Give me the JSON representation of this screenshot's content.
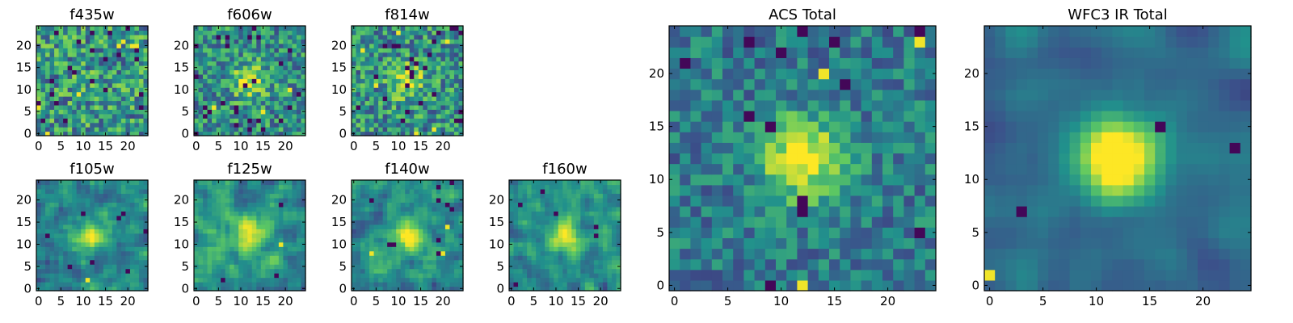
{
  "chart_data": {
    "type": "heatmap",
    "colormap": [
      "#440154",
      "#3b528b",
      "#21918c",
      "#5ec962",
      "#fde725"
    ],
    "panels": [
      {
        "id": "f435w",
        "title": "f435w",
        "xticks": [
          "0",
          "5",
          "10",
          "15",
          "20"
        ],
        "yticks": [
          "0",
          "5",
          "10",
          "15",
          "20"
        ],
        "xlim": [
          0,
          24
        ],
        "ylim": [
          0,
          24
        ],
        "grid": [
          25,
          25
        ],
        "seed": 11,
        "blob": 0.05,
        "noise": 0.62,
        "smooth": 0,
        "outliers": 0.05
      },
      {
        "id": "f606w",
        "title": "f606w",
        "xticks": [
          "0",
          "5",
          "10",
          "15",
          "20"
        ],
        "yticks": [
          "0",
          "5",
          "10",
          "15",
          "20"
        ],
        "xlim": [
          0,
          24
        ],
        "ylim": [
          0,
          24
        ],
        "grid": [
          25,
          25
        ],
        "seed": 23,
        "blob": 0.45,
        "noise": 0.55,
        "smooth": 0,
        "outliers": 0.04
      },
      {
        "id": "f814w",
        "title": "f814w",
        "xticks": [
          "0",
          "5",
          "10",
          "15",
          "20"
        ],
        "yticks": [
          "0",
          "5",
          "10",
          "15",
          "20"
        ],
        "xlim": [
          0,
          24
        ],
        "ylim": [
          0,
          24
        ],
        "grid": [
          25,
          25
        ],
        "seed": 37,
        "blob": 0.4,
        "noise": 0.58,
        "smooth": 0,
        "outliers": 0.05
      },
      {
        "id": "f105w",
        "title": "f105w",
        "xticks": [
          "0",
          "5",
          "10",
          "15",
          "20"
        ],
        "yticks": [
          "0",
          "5",
          "10",
          "15",
          "20"
        ],
        "xlim": [
          0,
          24
        ],
        "ylim": [
          0,
          24
        ],
        "grid": [
          25,
          25
        ],
        "seed": 41,
        "blob": 0.5,
        "noise": 0.5,
        "smooth": 1,
        "outliers": 0.01
      },
      {
        "id": "f125w",
        "title": "f125w",
        "xticks": [
          "0",
          "5",
          "10",
          "15",
          "20"
        ],
        "yticks": [
          "0",
          "5",
          "10",
          "15",
          "20"
        ],
        "xlim": [
          0,
          24
        ],
        "ylim": [
          0,
          24
        ],
        "grid": [
          25,
          25
        ],
        "seed": 53,
        "blob": 0.45,
        "noise": 0.55,
        "smooth": 1,
        "outliers": 0.01
      },
      {
        "id": "f140w",
        "title": "f140w",
        "xticks": [
          "0",
          "5",
          "10",
          "15",
          "20"
        ],
        "yticks": [
          "0",
          "5",
          "10",
          "15",
          "20"
        ],
        "xlim": [
          0,
          24
        ],
        "ylim": [
          0,
          24
        ],
        "grid": [
          25,
          25
        ],
        "seed": 67,
        "blob": 0.5,
        "noise": 0.5,
        "smooth": 1,
        "outliers": 0.02
      },
      {
        "id": "f160w",
        "title": "f160w",
        "xticks": [
          "0",
          "5",
          "10",
          "15",
          "20"
        ],
        "yticks": [
          "0",
          "5",
          "10",
          "15",
          "20"
        ],
        "xlim": [
          0,
          24
        ],
        "ylim": [
          0,
          24
        ],
        "grid": [
          25,
          25
        ],
        "seed": 79,
        "blob": 0.5,
        "noise": 0.5,
        "smooth": 1,
        "outliers": 0.02
      },
      {
        "id": "acs-total",
        "title": "ACS Total",
        "xticks": [
          "0",
          "5",
          "10",
          "15",
          "20"
        ],
        "yticks": [
          "0",
          "5",
          "10",
          "15",
          "20"
        ],
        "xlim": [
          0,
          24
        ],
        "ylim": [
          0,
          24
        ],
        "grid": [
          25,
          25
        ],
        "seed": 97,
        "blob": 0.65,
        "noise": 0.38,
        "smooth": 0,
        "outliers": 0.03
      },
      {
        "id": "wfc3-ir-total",
        "title": "WFC3 IR Total",
        "xticks": [
          "0",
          "5",
          "10",
          "15",
          "20"
        ],
        "yticks": [
          "0",
          "5",
          "10",
          "15",
          "20"
        ],
        "xlim": [
          0,
          24
        ],
        "ylim": [
          0,
          24
        ],
        "grid": [
          25,
          25
        ],
        "seed": 113,
        "blob": 0.85,
        "noise": 0.28,
        "smooth": 2,
        "outliers": 0.01
      }
    ]
  }
}
